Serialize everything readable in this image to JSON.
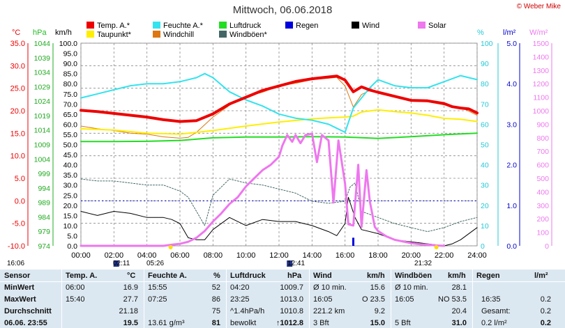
{
  "header": {
    "title": "Mittwoch, 06.06.2018",
    "copyright": "© Weber Mike"
  },
  "legend": [
    {
      "label": "Temp. A.*",
      "color": "#ee0000"
    },
    {
      "label": "Taupunkt*",
      "color": "#ffee00"
    },
    {
      "label": "Feuchte A.*",
      "color": "#33e3ee"
    },
    {
      "label": "Windchill",
      "color": "#dd7711"
    },
    {
      "label": "Luftdruck",
      "color": "#22dd22"
    },
    {
      "label": "Windböen*",
      "color": "#446666"
    },
    {
      "label": "Regen",
      "color": "#0000dd"
    },
    {
      "label": "Wind",
      "color": "#000000"
    },
    {
      "label": "Solar",
      "color": "#ee77ee"
    }
  ],
  "units": {
    "temp": "°C",
    "pressure": "hPa",
    "wind": "km/h",
    "humidity": "%",
    "rain": "l/m²",
    "solar": "W/m²"
  },
  "chart_data": {
    "type": "line",
    "title": "Mittwoch, 06.06.2018",
    "x_ticks": [
      "00:00",
      "02:00",
      "04:00",
      "06:00",
      "08:00",
      "10:00",
      "12:00",
      "14:00",
      "16:00",
      "18:00",
      "20:00",
      "22:00",
      "24:00"
    ],
    "axes": {
      "temp": {
        "unit": "°C",
        "ylim": [
          -10,
          35
        ],
        "ticks": [
          "35.0",
          "30.0",
          "25.0",
          "20.0",
          "15.0",
          "10.0",
          "5.0",
          "0.0",
          "-5.0",
          "-10.0"
        ]
      },
      "pressure": {
        "unit": "hPa",
        "ylim": [
          974,
          1044
        ],
        "ticks": [
          "1044",
          "1039",
          "1034",
          "1029",
          "1024",
          "1019",
          "1014",
          "1009",
          "1004",
          "999",
          "994",
          "989",
          "984",
          "979",
          "974"
        ]
      },
      "wind": {
        "unit": "km/h",
        "ylim": [
          0,
          100
        ],
        "ticks": [
          "100.0",
          "95.0",
          "90.0",
          "85.0",
          "80.0",
          "75.0",
          "70.0",
          "65.0",
          "60.0",
          "55.0",
          "50.0",
          "45.0",
          "40.0",
          "35.0",
          "30.0",
          "25.0",
          "20.0",
          "15.0",
          "10.0",
          "5.0",
          "0.0"
        ]
      },
      "humidity": {
        "unit": "%",
        "ylim": [
          0,
          100
        ],
        "ticks": [
          "100",
          "90",
          "80",
          "70",
          "60",
          "50",
          "40",
          "30",
          "20",
          "10",
          "0"
        ]
      },
      "rain": {
        "unit": "l/m²",
        "ylim": [
          0,
          5
        ],
        "ticks": [
          "5.0",
          "4.0",
          "3.0",
          "2.0",
          "1.0",
          "0.0"
        ]
      },
      "solar": {
        "unit": "W/m²",
        "ylim": [
          0,
          1500
        ],
        "ticks": [
          "1500",
          "1400",
          "1300",
          "1200",
          "1100",
          "1000",
          "900",
          "800",
          "700",
          "600",
          "500",
          "400",
          "300",
          "200",
          "100",
          "0"
        ]
      }
    },
    "grid": true,
    "series": [
      {
        "name": "Temp. A.*",
        "axis": "temp",
        "color": "#ee0000",
        "width": 4,
        "x": [
          0,
          1,
          2,
          3,
          4,
          5,
          6,
          7,
          8,
          9,
          10,
          11,
          12,
          13,
          14,
          15,
          15.5,
          16,
          16.5,
          17,
          17.5,
          18,
          19,
          20,
          21,
          22,
          22.5,
          23,
          23.5,
          24
        ],
        "y": [
          20.1,
          19.8,
          19.4,
          19.0,
          18.6,
          18.0,
          17.6,
          17.8,
          19.3,
          21.5,
          23.0,
          24.5,
          25.5,
          26.5,
          27.1,
          27.5,
          27.7,
          26.8,
          24.2,
          25.3,
          24.6,
          24.1,
          23.2,
          22.3,
          22.2,
          21.6,
          20.9,
          20.6,
          20.4,
          19.5
        ]
      },
      {
        "name": "Taupunkt*",
        "axis": "temp",
        "color": "#ffee00",
        "width": 2,
        "x": [
          0,
          2,
          4,
          6,
          8,
          10,
          12,
          14,
          15,
          16,
          16.5,
          17,
          18,
          19,
          20,
          21,
          22,
          23,
          24
        ],
        "y": [
          16.0,
          15.7,
          15.0,
          14.8,
          15.6,
          16.6,
          17.5,
          18.2,
          18.4,
          18.6,
          18.8,
          19.7,
          20.2,
          19.8,
          19.5,
          19.0,
          18.3,
          18.1,
          17.6
        ]
      },
      {
        "name": "Feuchte A.*",
        "axis": "humidity",
        "color": "#33e3ee",
        "width": 2,
        "x": [
          0,
          1,
          2,
          3,
          4,
          5,
          6,
          7,
          7.5,
          8,
          9,
          10,
          11,
          12,
          13,
          14,
          15,
          15.5,
          16,
          16.5,
          17,
          17.5,
          18,
          19,
          20,
          21,
          22,
          23,
          24
        ],
        "y": [
          73,
          75,
          77,
          79,
          80,
          80,
          81,
          83,
          85,
          83,
          76,
          72,
          69,
          65,
          63,
          62,
          60,
          58,
          56,
          68,
          73,
          78,
          82,
          79,
          78,
          78,
          81,
          84,
          82
        ]
      },
      {
        "name": "Windchill",
        "axis": "temp",
        "color": "#dd7711",
        "width": 1,
        "x": [
          0,
          1,
          2,
          3,
          4,
          5,
          6,
          6.5,
          7,
          8,
          9,
          10,
          11,
          12,
          13,
          14,
          15,
          15.5,
          16,
          16.5,
          17,
          17.5,
          18,
          19,
          20,
          21,
          22,
          23,
          24
        ],
        "y": [
          16.6,
          16.0,
          15.6,
          15.0,
          14.8,
          14.2,
          13.9,
          14.1,
          15.2,
          18.6,
          21.2,
          23.2,
          24.1,
          25.5,
          26.1,
          26.9,
          27.2,
          27.4,
          25.5,
          20.8,
          23.6,
          24.5,
          24.0,
          23.0,
          22.1,
          22.0,
          21.3,
          20.8,
          19.0
        ]
      },
      {
        "name": "Luftdruck",
        "axis": "pressure",
        "color": "#22dd22",
        "width": 2,
        "x": [
          0,
          2,
          4,
          6,
          8,
          10,
          12,
          14,
          16,
          18,
          20,
          22,
          24
        ],
        "y": [
          1010.0,
          1010.0,
          1010.1,
          1010.4,
          1011.3,
          1011.6,
          1011.6,
          1011.7,
          1011.6,
          1011.1,
          1011.7,
          1012.4,
          1012.9
        ]
      },
      {
        "name": "Windböen*",
        "axis": "wind",
        "color": "#446666",
        "width": 1,
        "dashed": true,
        "x": [
          0,
          1,
          2,
          3,
          4,
          5,
          6,
          6.5,
          7,
          7.5,
          8,
          9,
          10,
          11,
          12,
          13,
          14,
          15,
          16,
          16.3,
          16.6,
          17,
          18,
          19,
          20,
          21,
          22,
          23,
          24
        ],
        "y": [
          33,
          32,
          32,
          31,
          30,
          30,
          27,
          24,
          17,
          10,
          25,
          33,
          31,
          30,
          28,
          26,
          22,
          21,
          22,
          29,
          31,
          17,
          14,
          11,
          9,
          7,
          9,
          12,
          14
        ]
      },
      {
        "name": "Wind",
        "axis": "wind",
        "color": "#000000",
        "width": 1,
        "x": [
          0,
          1,
          2,
          3,
          4,
          5,
          5.5,
          6,
          6.5,
          7,
          7.5,
          8,
          9,
          10,
          11,
          12,
          13,
          14,
          15,
          15.5,
          16,
          16.2,
          16.6,
          17,
          18,
          19,
          20,
          21,
          22,
          22.5,
          23,
          24
        ],
        "y": [
          17,
          15,
          17,
          16,
          14,
          14,
          13,
          11,
          4,
          3,
          3,
          8,
          14,
          10,
          13,
          12,
          12,
          10,
          7,
          5,
          11,
          24,
          14,
          8,
          6,
          3,
          2,
          1,
          0,
          1,
          3,
          9
        ]
      },
      {
        "name": "Regen",
        "axis": "rain",
        "color": "#0000dd",
        "width": 1,
        "bars": true,
        "x": [
          16.5
        ],
        "y": [
          0.2
        ]
      },
      {
        "name": "Solar",
        "axis": "solar",
        "color": "#ee77ee",
        "width": 3,
        "x": [
          0,
          5,
          5.5,
          6,
          6.5,
          7,
          7.5,
          8,
          8.5,
          9,
          9.5,
          10,
          10.5,
          11,
          11.5,
          12,
          12.2,
          12.5,
          12.8,
          13,
          13.3,
          13.6,
          14,
          14.3,
          14.6,
          15,
          15.3,
          15.6,
          16,
          16.2,
          16.5,
          16.8,
          17,
          17.3,
          17.5,
          17.8,
          18,
          18.5,
          19,
          20,
          20.5,
          21,
          21.5,
          22
        ],
        "y": [
          0,
          0,
          8,
          15,
          30,
          60,
          110,
          180,
          240,
          310,
          360,
          440,
          500,
          560,
          600,
          660,
          740,
          820,
          770,
          820,
          760,
          820,
          830,
          620,
          820,
          780,
          320,
          780,
          460,
          160,
          150,
          600,
          140,
          560,
          330,
          140,
          110,
          70,
          45,
          20,
          12,
          8,
          3,
          0
        ]
      }
    ]
  },
  "sun": {
    "sunrise": "05:26",
    "sunset": "21:32",
    "moonrise": "02:11",
    "moonset": "12:41",
    "left_time": "16:06"
  },
  "table": {
    "headers": [
      "Sensor",
      "Temp. A.",
      "°C",
      "Feuchte A.",
      "%",
      "Luftdruck",
      "hPa",
      "Wind",
      "km/h",
      "Windböen",
      "km/h",
      "Regen",
      "l/m²"
    ],
    "rows": [
      {
        "label": "MinWert",
        "cells": [
          "06:00",
          "16.9",
          "15:55",
          "52",
          "04:20",
          "1009.7",
          "Ø 10 min.",
          "15.6",
          "Ø 10 min.",
          "28.1",
          "",
          ""
        ]
      },
      {
        "label": "MaxWert",
        "cells": [
          "15:40",
          "27.7",
          "07:25",
          "86",
          "23:25",
          "1013.0",
          "16:05",
          "O 23.5",
          "16:05",
          "NO 53.5",
          "16:35",
          "0.2"
        ]
      },
      {
        "label": "Durchschnitt",
        "cells": [
          "",
          "21.18",
          "",
          "75",
          "^1.4hPa/h",
          "1010.8",
          "221.2 km",
          "9.2",
          "",
          "20.4",
          "Gesamt:",
          "0.2"
        ]
      },
      {
        "label": "06.06. 23:55",
        "cells": [
          "",
          "19.5",
          "13.61 g/m³",
          "81",
          "bewolkt",
          "↑1012.8",
          "3 Bft",
          "15.0",
          "5 Bft",
          "31.0",
          "0.2 l/m²",
          "0.2"
        ]
      }
    ]
  }
}
